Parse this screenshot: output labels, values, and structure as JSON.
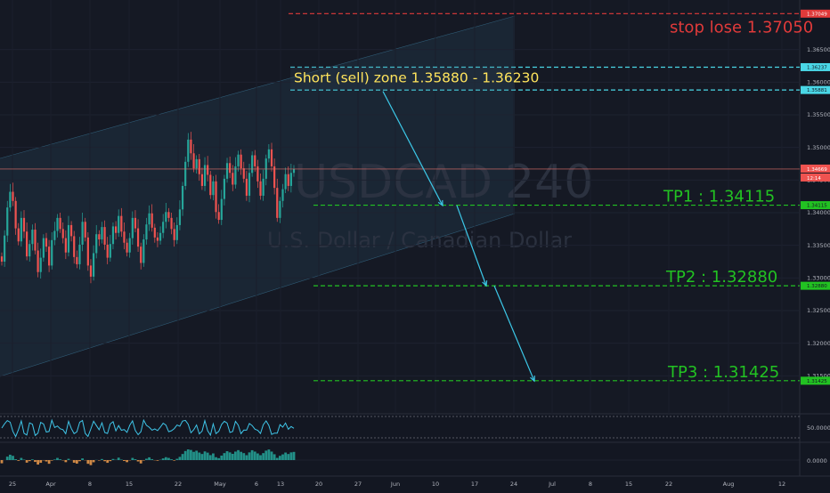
{
  "chart_data": {
    "type": "candlestick",
    "symbol": "USDCAD",
    "interval": "240",
    "description": "U.S. Dollar / Canadian Dollar",
    "y_ticks": [
      "1.36500",
      "1.36000",
      "1.35500",
      "1.35000",
      "1.34500",
      "1.34000",
      "1.33500",
      "1.33000",
      "1.32500",
      "1.32000",
      "1.31500"
    ],
    "y_tick_values": [
      1.365,
      1.36,
      1.355,
      1.35,
      1.345,
      1.34,
      1.335,
      1.33,
      1.325,
      1.32,
      1.315
    ],
    "ylim": [
      1.31,
      1.3715
    ],
    "x_ticks": [
      "25",
      "Apr",
      "8",
      "15",
      "22",
      "May",
      "6",
      "13",
      "20",
      "27",
      "Jun",
      "10",
      "17",
      "24",
      "Jul",
      "8",
      "15",
      "22",
      "Aug",
      "12"
    ],
    "current_price": 1.34669,
    "current_price_label": "1.34669",
    "countdown_label": "12:14",
    "levels": [
      {
        "name": "stop_lose",
        "value": 1.3705,
        "color": "#e03a3a",
        "label": "stop lose 1.37050",
        "tag": "1.37049"
      },
      {
        "name": "zone_top",
        "value": 1.3623,
        "color": "#4ad7e6",
        "label": "",
        "tag": "1.36237"
      },
      {
        "name": "zone_bottom",
        "value": 1.3588,
        "color": "#4ad7e6",
        "label": "",
        "tag": "1.35881"
      },
      {
        "name": "tp1",
        "value": 1.34115,
        "color": "#22c222",
        "label": "TP1 : 1.34115",
        "tag": "1.34115"
      },
      {
        "name": "tp2",
        "value": 1.3288,
        "color": "#22c222",
        "label": "TP2 : 1.32880",
        "tag": "1.32880"
      },
      {
        "name": "tp3",
        "value": 1.31425,
        "color": "#22c222",
        "label": "TP3 : 1.31425",
        "tag": "1.31425"
      }
    ],
    "zone_label": "Short (sell) zone 1.35880 - 1.36230",
    "close_series": [
      1.3325,
      1.3365,
      1.3408,
      1.3432,
      1.3418,
      1.3376,
      1.3356,
      1.3392,
      1.3371,
      1.3333,
      1.3352,
      1.3374,
      1.3342,
      1.3309,
      1.3331,
      1.3361,
      1.3348,
      1.3319,
      1.3358,
      1.3372,
      1.3392,
      1.3375,
      1.3361,
      1.3339,
      1.3381,
      1.3364,
      1.3332,
      1.3321,
      1.3351,
      1.3386,
      1.3362,
      1.3319,
      1.3302,
      1.3338,
      1.3367,
      1.3359,
      1.3378,
      1.3351,
      1.3331,
      1.3352,
      1.3379,
      1.3369,
      1.3395,
      1.3371,
      1.3354,
      1.3339,
      1.3361,
      1.3392,
      1.3376,
      1.3348,
      1.3323,
      1.3359,
      1.3382,
      1.3399,
      1.3377,
      1.3362,
      1.3357,
      1.3369,
      1.3386,
      1.3401,
      1.3392,
      1.3375,
      1.3358,
      1.3381,
      1.3405,
      1.3441,
      1.3478,
      1.3512,
      1.3491,
      1.3468,
      1.3482,
      1.3459,
      1.3441,
      1.3473,
      1.3458,
      1.3427,
      1.3448,
      1.3401,
      1.3389,
      1.3421,
      1.3452,
      1.3476,
      1.3461,
      1.3443,
      1.3471,
      1.3489,
      1.3468,
      1.3452,
      1.3426,
      1.3461,
      1.3488,
      1.3471,
      1.3448,
      1.3426,
      1.3452,
      1.3483,
      1.3497,
      1.3471,
      1.3438,
      1.3392,
      1.3418,
      1.3436,
      1.3459,
      1.3441,
      1.3461,
      1.3467
    ],
    "rsi_label": "50.0000",
    "macd_label": "0.0000"
  }
}
